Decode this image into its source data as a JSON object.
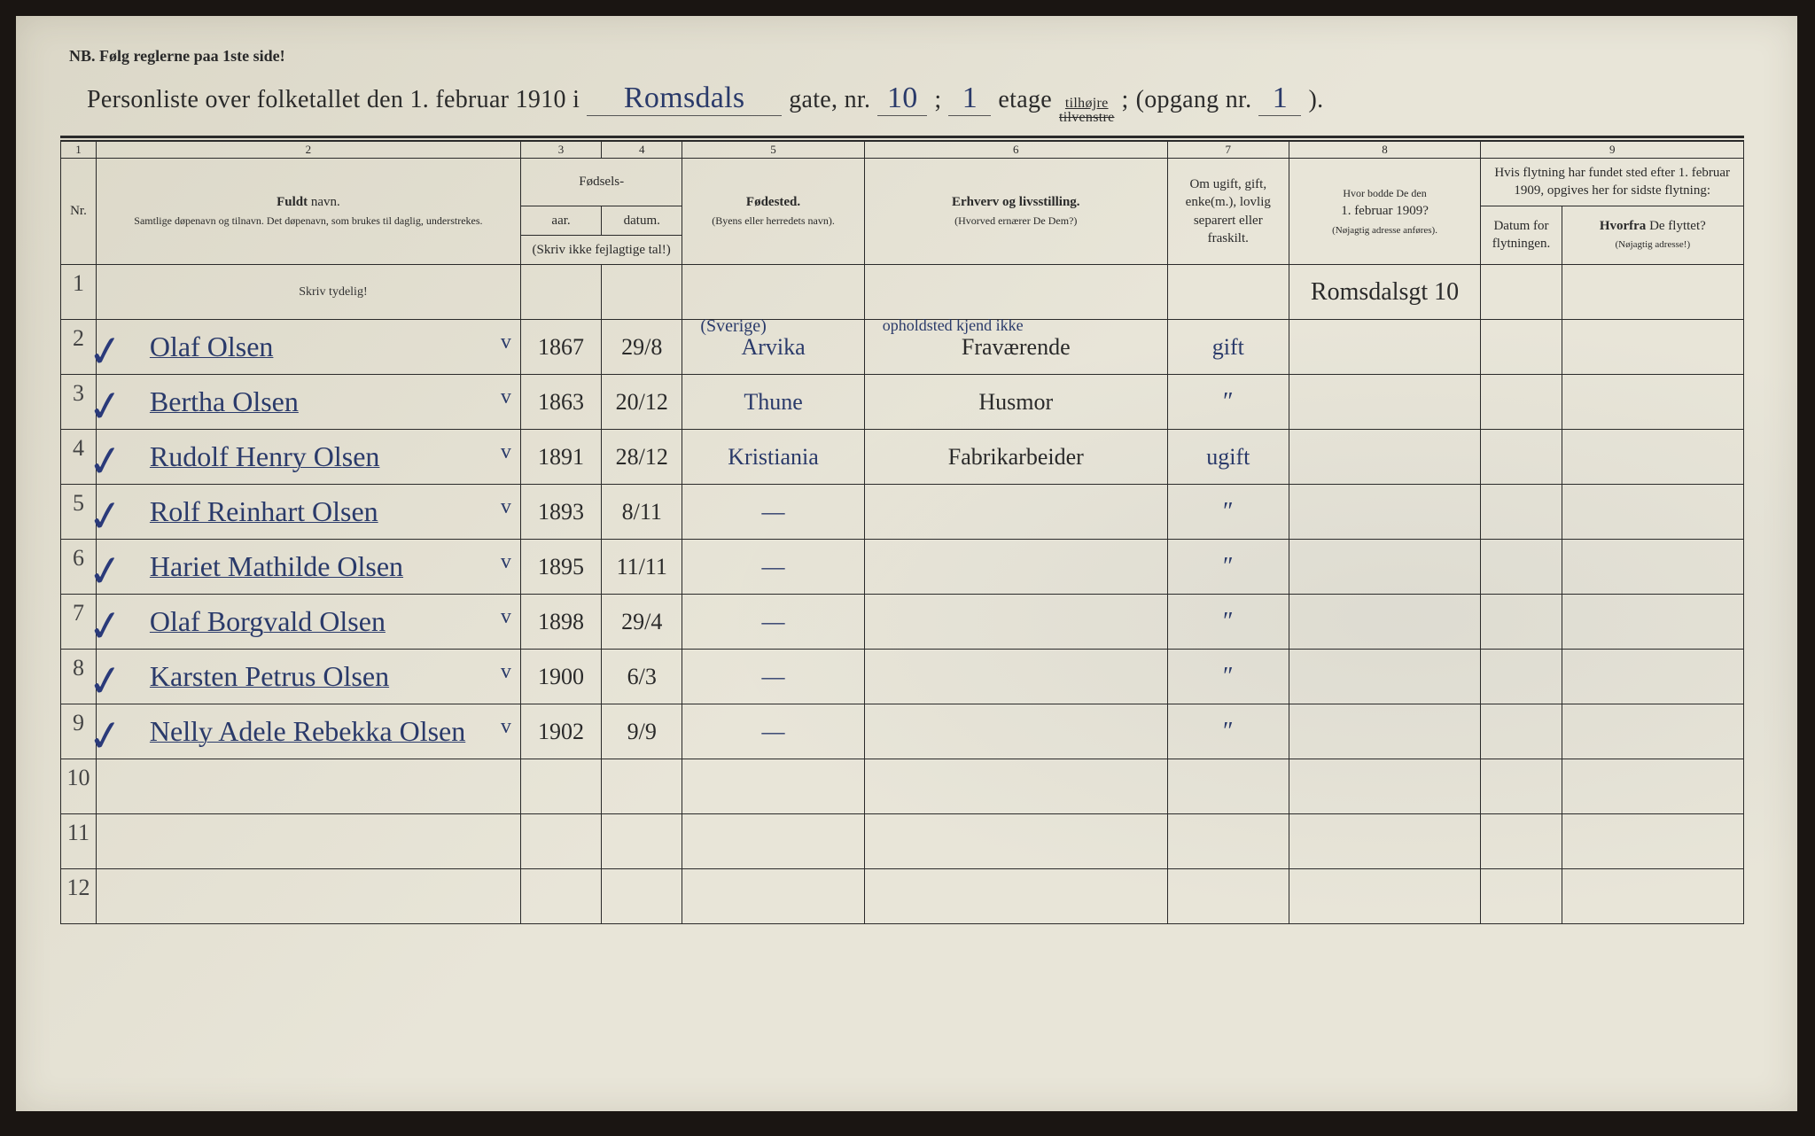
{
  "nb_text": "NB. Følg reglerne paa 1ste side!",
  "title": {
    "prefix": "Personliste over folketallet den 1. februar 1910 i",
    "street": "Romsdals",
    "gate_label": "gate, nr.",
    "nr": "10",
    "etage_label": "etage",
    "etage": "1",
    "side_top": "tilhøjre",
    "side_bot": "tilvenstre",
    "opgang_label": "(opgang nr.",
    "opgang": "1",
    "close": ")."
  },
  "colnums": [
    "1",
    "2",
    "3",
    "4",
    "5",
    "6",
    "7",
    "8",
    "9"
  ],
  "headers": {
    "nr": "Nr.",
    "name_bold": "Fuldt",
    "name_rest": " navn.",
    "name_sub": "Samtlige døpenavn og tilnavn. Det døpenavn, som brukes til daglig, understrekes.",
    "birth_group": "Fødsels-",
    "year": "aar.",
    "date": "datum.",
    "birth_note": "(Skriv ikke fejlagtige tal!)",
    "place_bold": "Fødested.",
    "place_sub": "(Byens eller herredets navn).",
    "occ_bold": "Erhverv og livsstilling.",
    "occ_sub": "(Hvorved ernærer De Dem?)",
    "status": "Om ugift, gift, enke(m.), lovlig separert eller fraskilt.",
    "addr_pre": "Hvor bodde De den",
    "addr_date": "1. februar 1909?",
    "addr_sub": "(Nøjagtig adresse anføres).",
    "move_intro": "Hvis flytning har fundet sted efter 1. februar 1909, opgives her for sidste flytning:",
    "move_date": "Datum for flytningen.",
    "move_from_bold": "Hvorfra",
    "move_from_rest": " De flyttet?",
    "move_from_sub": "(Nøjagtig adresse!)"
  },
  "skriv_tydelig": "Skriv tydelig!",
  "address_entry": "Romsdalsgt 10",
  "place_note_above": "(Sverige)",
  "occ_note_above": "opholdsted kjend ikke",
  "rows": [
    {
      "nr": "2",
      "check": true,
      "name": "Olaf Olsen",
      "v": "v",
      "year": "1867",
      "date": "29/8",
      "place": "Arvika",
      "occ": "Fraværende",
      "status": "gift"
    },
    {
      "nr": "3",
      "check": true,
      "name": "Bertha Olsen",
      "v": "v",
      "year": "1863",
      "date": "20/12",
      "place": "Thune",
      "occ": "Husmor",
      "status": "\""
    },
    {
      "nr": "4",
      "check": true,
      "name": "Rudolf Henry Olsen",
      "v": "v",
      "year": "1891",
      "date": "28/12",
      "place": "Kristiania",
      "occ": "Fabrikarbeider",
      "status": "ugift"
    },
    {
      "nr": "5",
      "check": true,
      "name": "Rolf Reinhart Olsen",
      "v": "v",
      "year": "1893",
      "date": "8/11",
      "place": "—",
      "occ": "",
      "status": "\""
    },
    {
      "nr": "6",
      "check": true,
      "name": "Hariet Mathilde Olsen",
      "v": "v",
      "year": "1895",
      "date": "11/11",
      "place": "—",
      "occ": "",
      "status": "\""
    },
    {
      "nr": "7",
      "check": true,
      "name": "Olaf Borgvald Olsen",
      "v": "v",
      "year": "1898",
      "date": "29/4",
      "place": "—",
      "occ": "",
      "status": "\""
    },
    {
      "nr": "8",
      "check": true,
      "name": "Karsten Petrus Olsen",
      "v": "v",
      "year": "1900",
      "date": "6/3",
      "place": "—",
      "occ": "",
      "status": "\""
    },
    {
      "nr": "9",
      "check": true,
      "name": "Nelly Adele Rebekka Olsen",
      "v": "v",
      "year": "1902",
      "date": "9/9",
      "place": "—",
      "occ": "",
      "status": "\""
    }
  ],
  "empty_rows": [
    "10",
    "11",
    "12"
  ],
  "colors": {
    "paper": "#e8e5d8",
    "ink_print": "#2a2a2a",
    "ink_hand": "#2a3a6a",
    "outer": "#1a1512"
  }
}
